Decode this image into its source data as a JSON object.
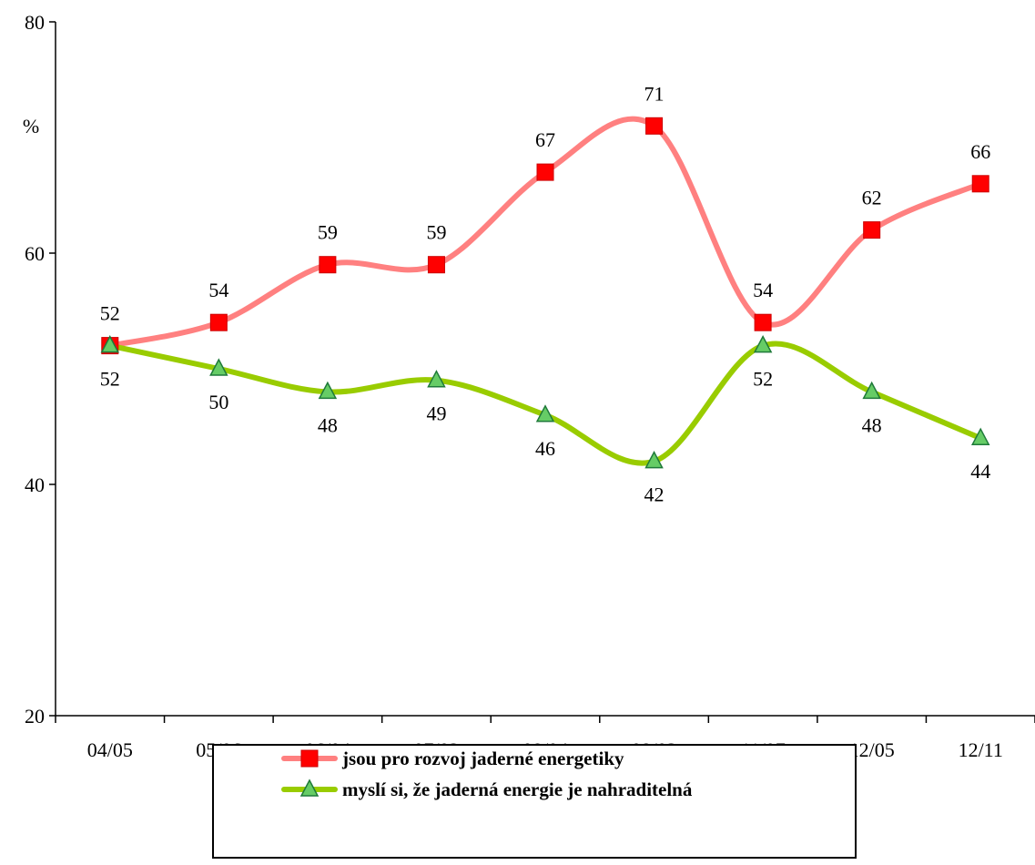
{
  "chart_data": {
    "type": "line",
    "title": "",
    "xlabel": "",
    "ylabel": "%",
    "ylim": [
      20,
      80
    ],
    "yticks": [
      20,
      40,
      60,
      80
    ],
    "grid": false,
    "legend_position": "bottom",
    "categories": [
      "04/05",
      "05/06",
      "06/04",
      "07/02",
      "08/04",
      "09/03",
      "11/07",
      "12/05",
      "12/11"
    ],
    "series": [
      {
        "name": "jsou pro rozvoj jaderné energetiky",
        "values": [
          52,
          54,
          59,
          59,
          67,
          71,
          54,
          62,
          66
        ],
        "line_color": "#ff8080",
        "marker": "square",
        "marker_color": "#ff0000",
        "label_position": "above"
      },
      {
        "name": "myslí si, že jaderná energie je nahraditelná",
        "values": [
          52,
          50,
          48,
          49,
          46,
          42,
          52,
          48,
          44
        ],
        "line_color": "#99cc00",
        "marker": "triangle",
        "marker_color": "#66cc66",
        "label_position": "below"
      }
    ]
  }
}
